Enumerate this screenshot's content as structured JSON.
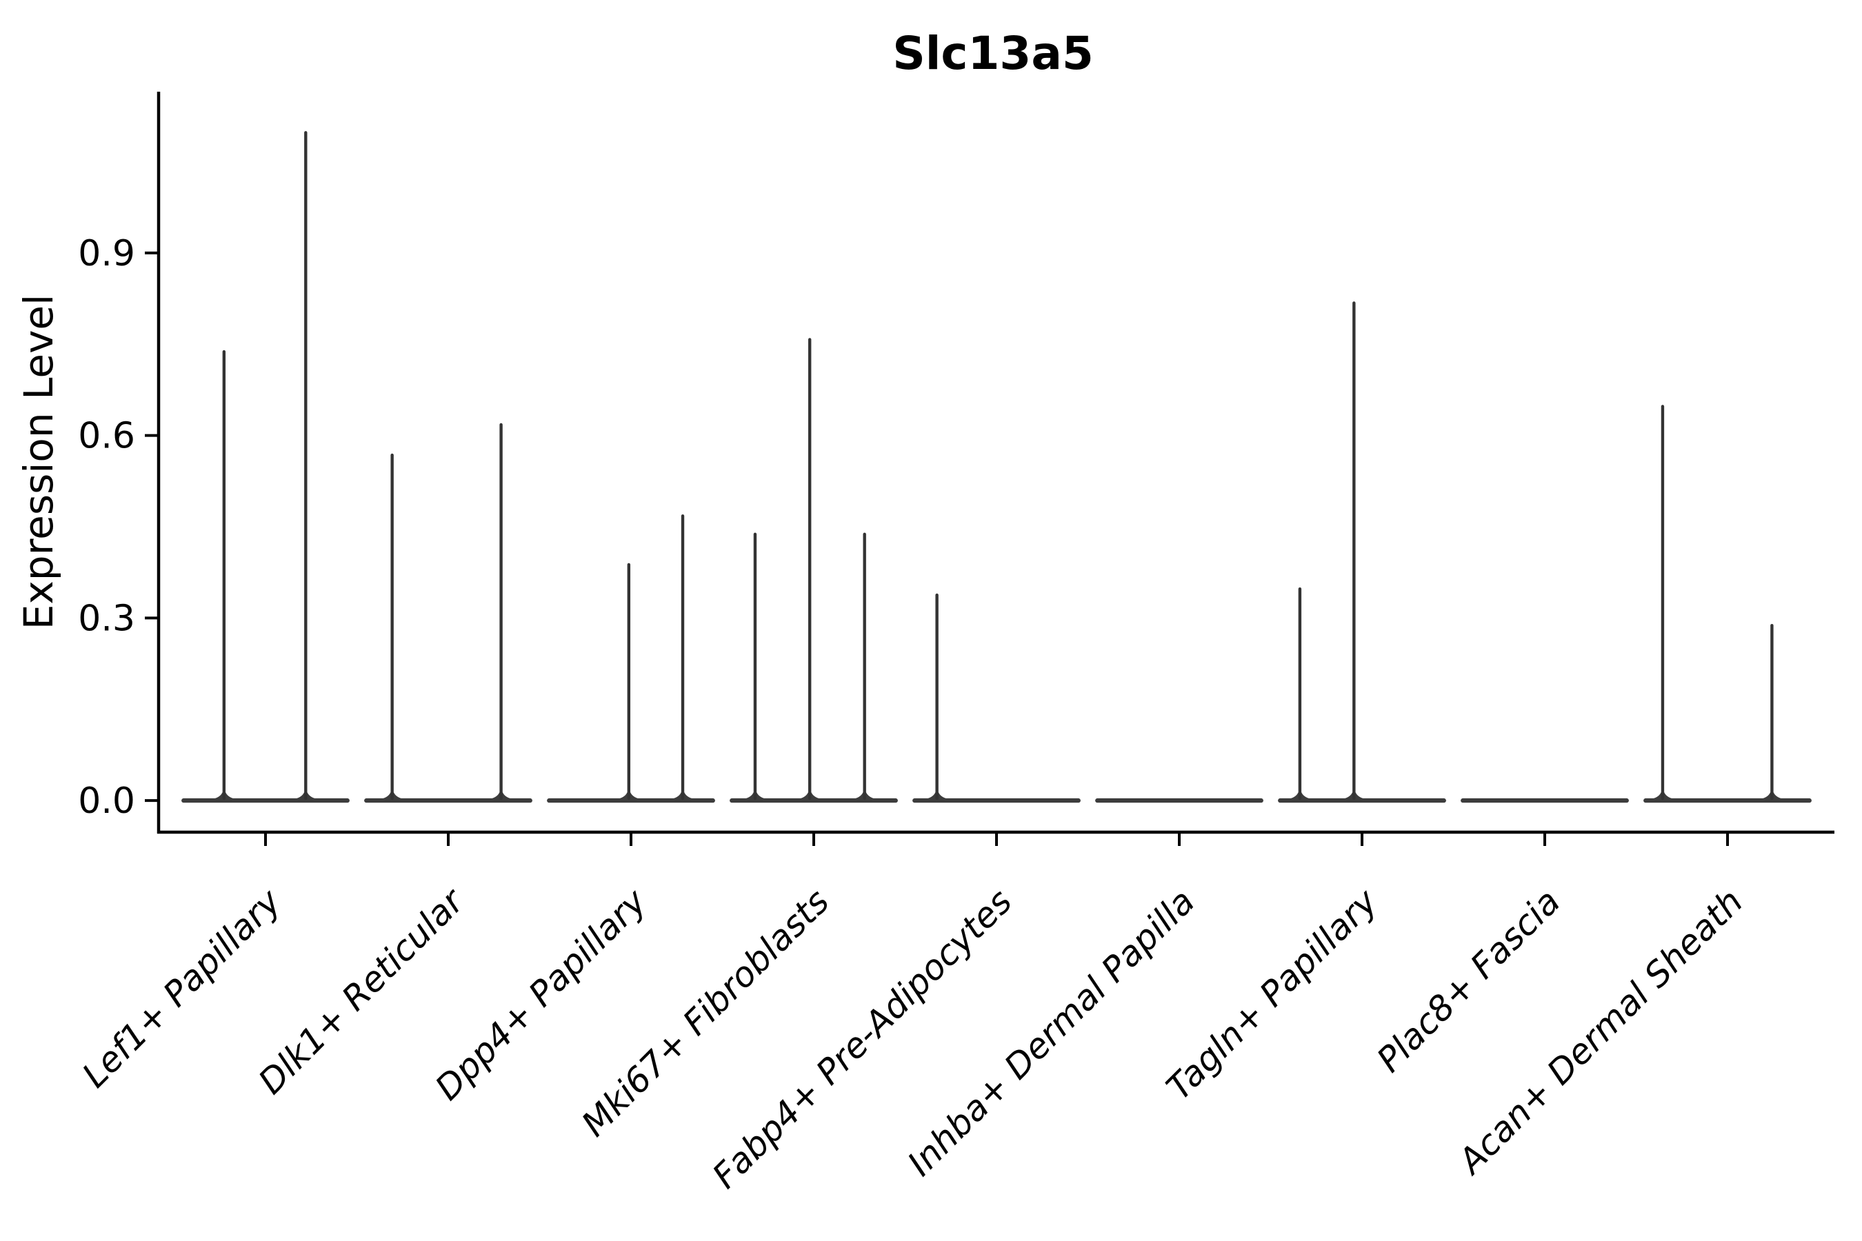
{
  "chart_data": {
    "type": "violin",
    "title": "Slc13a5",
    "xlabel": "",
    "ylabel": "Expression Level",
    "yticks": [
      0.0,
      0.3,
      0.6,
      0.9
    ],
    "ylim": [
      -0.052,
      1.165
    ],
    "grid": false,
    "legend_position": "none",
    "violin_width_frac": 0.92,
    "colors": {
      "violin": "#3c3c3c",
      "spike": "#333333",
      "axis": "#000000",
      "text": "#000000",
      "background": "#ffffff"
    },
    "categories": [
      "Lef1+ Papillary",
      "Dlk1+ Reticular",
      "Dpp4+ Papillary",
      "Mki67+ Fibroblasts",
      "Fabp4+ Pre-Adipocytes",
      "Inhba+ Dermal Papilla",
      "Tagln+ Papillary",
      "Plac8+ Fascia",
      "Acan+ Dermal Sheath"
    ],
    "violins": [
      {
        "category": "Lef1+ Papillary",
        "baseline": 0.0,
        "spikes": [
          {
            "pos": -0.227,
            "max": 0.74
          },
          {
            "pos": 0.22,
            "max": 1.1
          }
        ]
      },
      {
        "category": "Dlk1+ Reticular",
        "baseline": 0.0,
        "spikes": [
          {
            "pos": -0.307,
            "max": 0.57
          },
          {
            "pos": 0.289,
            "max": 0.62
          }
        ]
      },
      {
        "category": "Dpp4+ Papillary",
        "baseline": 0.0,
        "spikes": [
          {
            "pos": -0.012,
            "max": 0.39
          },
          {
            "pos": 0.283,
            "max": 0.47
          }
        ]
      },
      {
        "category": "Mki67+ Fibroblasts",
        "baseline": 0.0,
        "spikes": [
          {
            "pos": -0.321,
            "max": 0.44
          },
          {
            "pos": -0.022,
            "max": 0.76
          },
          {
            "pos": 0.278,
            "max": 0.44
          }
        ]
      },
      {
        "category": "Fabp4+ Pre-Adipocytes",
        "baseline": 0.0,
        "spikes": [
          {
            "pos": -0.326,
            "max": 0.34
          }
        ]
      },
      {
        "category": "Inhba+ Dermal Papilla",
        "baseline": 0.0,
        "spikes": []
      },
      {
        "category": "Tagln+ Papillary",
        "baseline": 0.0,
        "spikes": [
          {
            "pos": -0.34,
            "max": 0.35
          },
          {
            "pos": -0.044,
            "max": 0.82
          }
        ]
      },
      {
        "category": "Plac8+ Fascia",
        "baseline": 0.0,
        "spikes": []
      },
      {
        "category": "Acan+ Dermal Sheath",
        "baseline": 0.0,
        "spikes": [
          {
            "pos": -0.355,
            "max": 0.65
          },
          {
            "pos": 0.243,
            "max": 0.29
          }
        ]
      }
    ]
  }
}
